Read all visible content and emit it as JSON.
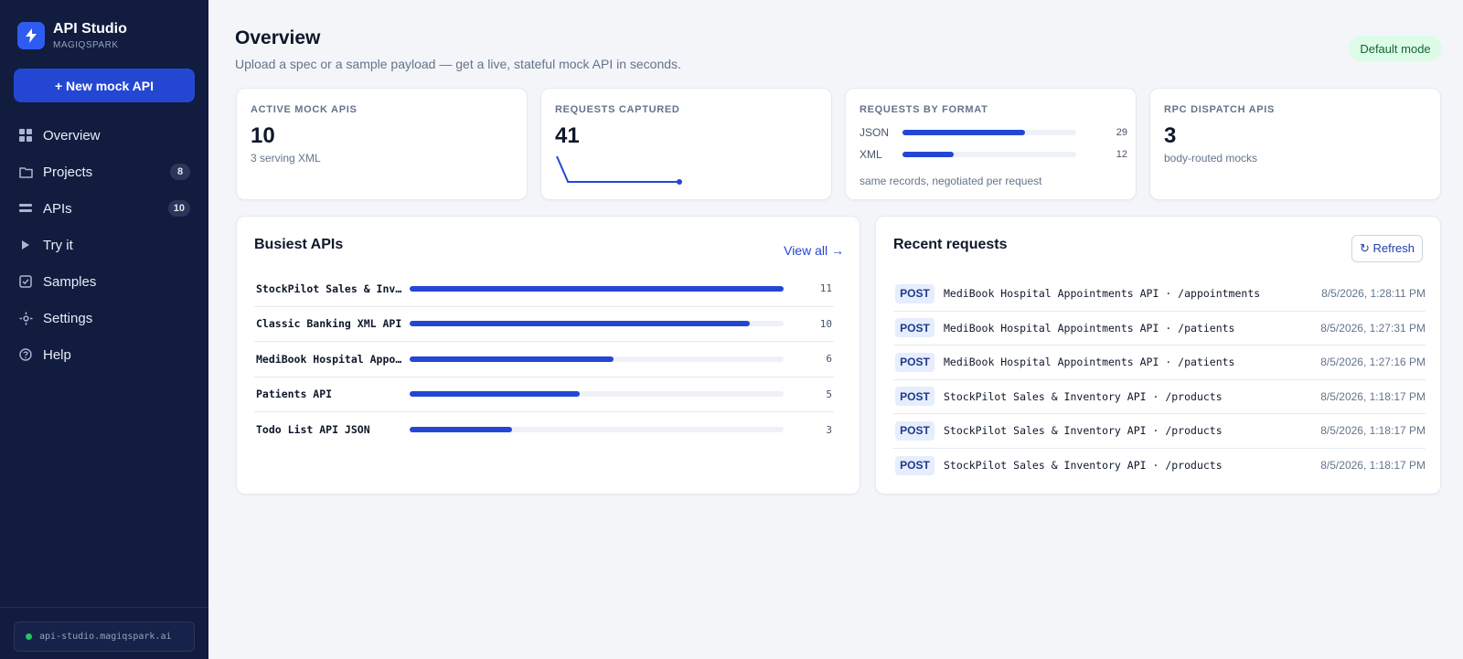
{
  "app": {
    "title": "API Studio",
    "org": "MAGIQSPARK",
    "host": "api-studio.magiqspark.ai",
    "accent": "#2447d3"
  },
  "sidebar": {
    "new_button": "+  New mock API",
    "items": [
      {
        "label": "Overview",
        "icon": "grid-icon",
        "badge": ""
      },
      {
        "label": "Projects",
        "icon": "folder-icon",
        "badge": "8"
      },
      {
        "label": "APIs",
        "icon": "layers-icon",
        "badge": "10"
      },
      {
        "label": "Try it",
        "icon": "play-icon",
        "badge": ""
      },
      {
        "label": "Samples",
        "icon": "checkbox-icon",
        "badge": ""
      },
      {
        "label": "Settings",
        "icon": "gear-icon",
        "badge": ""
      },
      {
        "label": "Help",
        "icon": "help-icon",
        "badge": ""
      }
    ]
  },
  "header": {
    "title": "Overview",
    "subtitle": "Upload a spec or a sample payload — get a live, stateful mock API in seconds.",
    "mode": "Default mode"
  },
  "stats": {
    "active": {
      "label": "ACTIVE MOCK APIS",
      "value": "10",
      "note": "3 serving XML"
    },
    "captured": {
      "label": "REQUESTS CAPTURED",
      "value": "41",
      "sparkline": [
        40,
        1,
        1,
        1,
        1,
        1,
        1,
        1,
        1,
        1,
        1,
        1
      ]
    },
    "format": {
      "label": "REQUESTS BY FORMAT",
      "rows": [
        {
          "name": "JSON",
          "count": "29",
          "fraction": 0.707
        },
        {
          "name": "XML",
          "count": "12",
          "fraction": 0.293
        }
      ],
      "note": "same records, negotiated per request"
    },
    "rpc": {
      "label": "RPC DISPATCH APIS",
      "value": "3",
      "note": "body-routed mocks"
    }
  },
  "busiest": {
    "title": "Busiest APIs",
    "view_all": "View all →",
    "rows": [
      {
        "name": "StockPilot Sales & Inventory API",
        "count": "11",
        "fraction": 1.0
      },
      {
        "name": "Classic Banking XML API",
        "count": "10",
        "fraction": 0.909
      },
      {
        "name": "MediBook Hospital Appointments API",
        "count": "6",
        "fraction": 0.545
      },
      {
        "name": "Patients API",
        "count": "5",
        "fraction": 0.455
      },
      {
        "name": "Todo List API JSON",
        "count": "3",
        "fraction": 0.273
      }
    ]
  },
  "recent": {
    "title": "Recent requests",
    "refresh": "↻ Refresh",
    "rows": [
      {
        "method": "POST",
        "path": "MediBook Hospital Appointments API · /appointments",
        "time": "8/5/2026, 1:28:11 PM"
      },
      {
        "method": "POST",
        "path": "MediBook Hospital Appointments API · /patients",
        "time": "8/5/2026, 1:27:31 PM"
      },
      {
        "method": "POST",
        "path": "MediBook Hospital Appointments API · /patients",
        "time": "8/5/2026, 1:27:16 PM"
      },
      {
        "method": "POST",
        "path": "StockPilot Sales & Inventory API · /products",
        "time": "8/5/2026, 1:18:17 PM"
      },
      {
        "method": "POST",
        "path": "StockPilot Sales & Inventory API · /products",
        "time": "8/5/2026, 1:18:17 PM"
      },
      {
        "method": "POST",
        "path": "StockPilot Sales & Inventory API · /products",
        "time": "8/5/2026, 1:18:17 PM"
      }
    ]
  }
}
